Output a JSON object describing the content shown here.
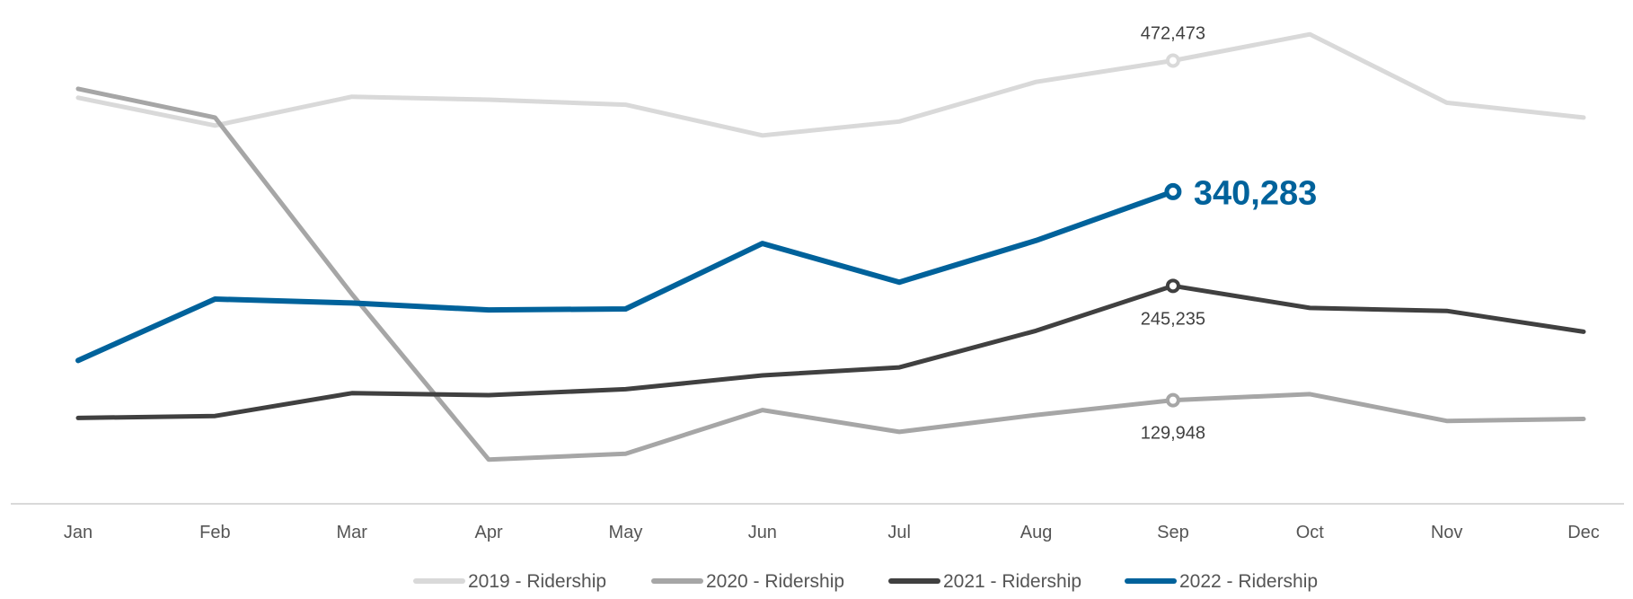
{
  "chart_data": {
    "type": "line",
    "categories": [
      "Jan",
      "Feb",
      "Mar",
      "Apr",
      "May",
      "Jun",
      "Jul",
      "Aug",
      "Sep",
      "Oct",
      "Nov",
      "Dec"
    ],
    "ylim": [
      20000,
      520000
    ],
    "grid": false,
    "legend_position": "bottom",
    "series": [
      {
        "name": "2019 - Ridership",
        "color": "#d9d9d9",
        "values": [
          435000,
          407000,
          436000,
          433000,
          428000,
          397000,
          411000,
          451000,
          472473,
          499000,
          430000,
          415000
        ],
        "annotation": {
          "index": 8,
          "text": "472,473",
          "position": "above",
          "emphasis": false
        }
      },
      {
        "name": "2020 - Ridership",
        "color": "#a6a6a6",
        "values": [
          444000,
          415000,
          237000,
          70000,
          76000,
          120000,
          98000,
          115000,
          129948,
          136000,
          109000,
          111000
        ],
        "annotation": {
          "index": 8,
          "text": "129,948",
          "position": "below",
          "emphasis": false
        }
      },
      {
        "name": "2021 - Ridership",
        "color": "#404040",
        "values": [
          112000,
          114000,
          137000,
          135000,
          141000,
          155000,
          163000,
          200000,
          245235,
          223000,
          220000,
          199000
        ],
        "annotation": {
          "index": 8,
          "text": "245,235",
          "position": "below",
          "emphasis": false
        }
      },
      {
        "name": "2022 - Ridership",
        "color": "#00629b",
        "values": [
          170000,
          232000,
          228000,
          221000,
          222000,
          288000,
          249000,
          291000,
          340283,
          null,
          null,
          null
        ],
        "annotation": {
          "index": 8,
          "text": "340,283",
          "position": "right",
          "emphasis": true
        }
      }
    ]
  }
}
